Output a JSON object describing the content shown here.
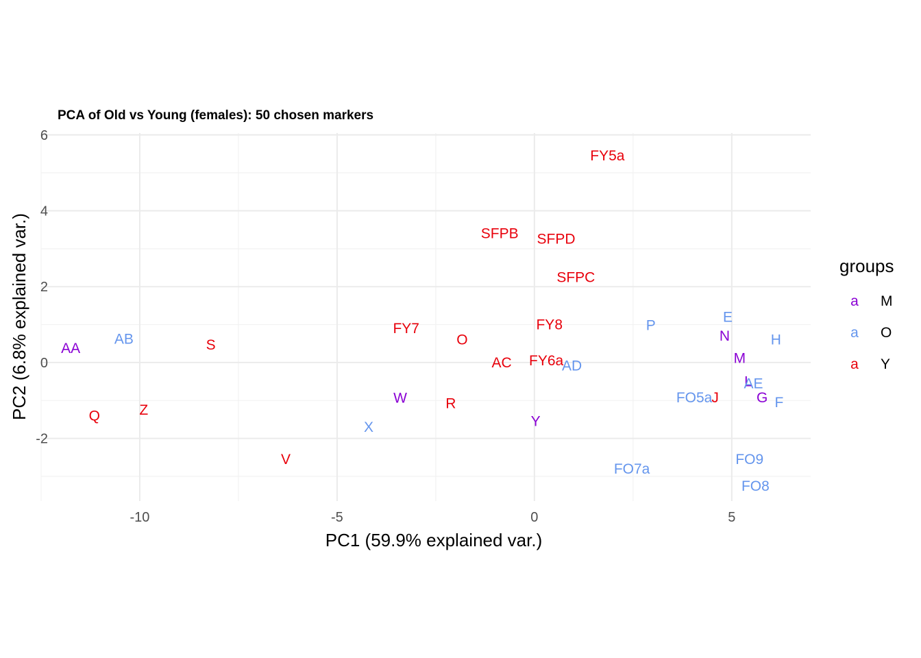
{
  "chart_data": {
    "type": "scatter",
    "title": "PCA of Old vs Young (females): 50 chosen markers",
    "xlabel": "PC1 (59.9% explained var.)",
    "ylabel": "PC2 (6.8% explained var.)",
    "xlim": [
      -12.5,
      7
    ],
    "ylim": [
      -3.65,
      6.05
    ],
    "x_ticks": [
      -10,
      -5,
      0,
      5
    ],
    "x_tick_labels": [
      "-10",
      "-5",
      "0",
      "5"
    ],
    "y_ticks": [
      -2,
      0,
      2,
      4,
      6
    ],
    "y_tick_labels": [
      "-2",
      "0",
      "2",
      "4",
      "6"
    ],
    "grid": true,
    "legend": {
      "title": "groups",
      "position": "right",
      "key_glyph": "a",
      "entries": [
        {
          "name": "M",
          "color": "#8a00d4"
        },
        {
          "name": "O",
          "color": "#6495ed"
        },
        {
          "name": "Y",
          "color": "#e8000b"
        }
      ]
    },
    "group_colors": {
      "M": "#8a00d4",
      "O": "#6495ed",
      "Y": "#e8000b"
    },
    "points": [
      {
        "label": "FY5a",
        "x": 1.85,
        "y": 5.45,
        "group": "Y"
      },
      {
        "label": "SFPB",
        "x": -0.88,
        "y": 3.4,
        "group": "Y"
      },
      {
        "label": "SFPD",
        "x": 0.55,
        "y": 3.26,
        "group": "Y"
      },
      {
        "label": "SFPC",
        "x": 1.05,
        "y": 2.25,
        "group": "Y"
      },
      {
        "label": "FY7",
        "x": -3.25,
        "y": 0.9,
        "group": "Y"
      },
      {
        "label": "FY8",
        "x": 0.38,
        "y": 1.0,
        "group": "Y"
      },
      {
        "label": "O",
        "x": -1.83,
        "y": 0.6,
        "group": "Y"
      },
      {
        "label": "S",
        "x": -8.2,
        "y": 0.47,
        "group": "Y"
      },
      {
        "label": "AC",
        "x": -0.83,
        "y": 0.0,
        "group": "Y"
      },
      {
        "label": "FY6a",
        "x": 0.3,
        "y": 0.05,
        "group": "Y"
      },
      {
        "label": "R",
        "x": -2.12,
        "y": -1.08,
        "group": "Y"
      },
      {
        "label": "Z",
        "x": -9.9,
        "y": -1.25,
        "group": "Y"
      },
      {
        "label": "Q",
        "x": -11.15,
        "y": -1.4,
        "group": "Y"
      },
      {
        "label": "V",
        "x": -6.3,
        "y": -2.55,
        "group": "Y"
      },
      {
        "label": "J",
        "x": 4.58,
        "y": -0.92,
        "group": "Y"
      },
      {
        "label": "AA",
        "x": -11.75,
        "y": 0.38,
        "group": "M"
      },
      {
        "label": "W",
        "x": -3.4,
        "y": -0.93,
        "group": "M"
      },
      {
        "label": "Y",
        "x": 0.03,
        "y": -1.55,
        "group": "M"
      },
      {
        "label": "N",
        "x": 4.82,
        "y": 0.7,
        "group": "M"
      },
      {
        "label": "M",
        "x": 5.2,
        "y": 0.12,
        "group": "M"
      },
      {
        "label": "L",
        "x": 5.42,
        "y": -0.5,
        "group": "M"
      },
      {
        "label": "G",
        "x": 5.77,
        "y": -0.92,
        "group": "M"
      },
      {
        "label": "AB",
        "x": -10.4,
        "y": 0.62,
        "group": "O"
      },
      {
        "label": "X",
        "x": -4.2,
        "y": -1.7,
        "group": "O"
      },
      {
        "label": "AD",
        "x": 0.95,
        "y": -0.08,
        "group": "O"
      },
      {
        "label": "P",
        "x": 2.95,
        "y": 0.98,
        "group": "O"
      },
      {
        "label": "E",
        "x": 4.9,
        "y": 1.2,
        "group": "O"
      },
      {
        "label": "H",
        "x": 6.12,
        "y": 0.6,
        "group": "O"
      },
      {
        "label": "AE",
        "x": 5.55,
        "y": -0.55,
        "group": "O"
      },
      {
        "label": "F",
        "x": 6.2,
        "y": -1.05,
        "group": "O"
      },
      {
        "label": "FO5a",
        "x": 4.05,
        "y": -0.92,
        "group": "O"
      },
      {
        "label": "FO9",
        "x": 5.45,
        "y": -2.55,
        "group": "O"
      },
      {
        "label": "FO7a",
        "x": 2.47,
        "y": -2.8,
        "group": "O"
      },
      {
        "label": "FO8",
        "x": 5.6,
        "y": -3.25,
        "group": "O"
      }
    ]
  }
}
